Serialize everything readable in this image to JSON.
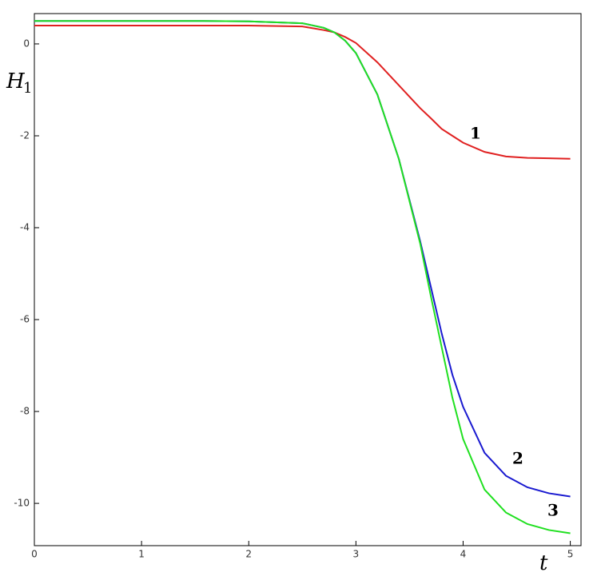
{
  "chart_data": {
    "type": "line",
    "x_label": "t",
    "y_label": "H",
    "y_label_subscript": "1",
    "x": [
      0,
      0.5,
      1,
      1.5,
      2,
      2.5,
      2.7,
      2.8,
      2.9,
      3.0,
      3.2,
      3.4,
      3.6,
      3.7,
      3.8,
      3.9,
      4.0,
      4.2,
      4.4,
      4.6,
      4.8,
      5.0
    ],
    "series": [
      {
        "name": "1",
        "color": "#e02020",
        "values": [
          0.4,
          0.4,
          0.4,
          0.4,
          0.4,
          0.38,
          0.3,
          0.25,
          0.15,
          0.02,
          -0.4,
          -0.9,
          -1.4,
          -1.62,
          -1.85,
          -2.0,
          -2.15,
          -2.35,
          -2.45,
          -2.48,
          -2.49,
          -2.5
        ]
      },
      {
        "name": "2",
        "color": "#1a1ad0",
        "values": [
          0.5,
          0.5,
          0.5,
          0.5,
          0.49,
          0.45,
          0.35,
          0.25,
          0.07,
          -0.2,
          -1.1,
          -2.5,
          -4.3,
          -5.3,
          -6.3,
          -7.2,
          -7.9,
          -8.9,
          -9.4,
          -9.65,
          -9.78,
          -9.85
        ]
      },
      {
        "name": "3",
        "color": "#20e020",
        "values": [
          0.5,
          0.5,
          0.5,
          0.5,
          0.49,
          0.45,
          0.35,
          0.25,
          0.07,
          -0.2,
          -1.1,
          -2.5,
          -4.35,
          -5.5,
          -6.6,
          -7.7,
          -8.6,
          -9.7,
          -10.2,
          -10.45,
          -10.58,
          -10.65
        ]
      }
    ],
    "xlim": [
      0,
      5.1
    ],
    "ylim": [
      -10.92,
      0.66
    ],
    "xticks": [
      0,
      1,
      2,
      3,
      4,
      5
    ],
    "yticks": [
      0,
      -2,
      -4,
      -6,
      -8,
      -10
    ]
  }
}
